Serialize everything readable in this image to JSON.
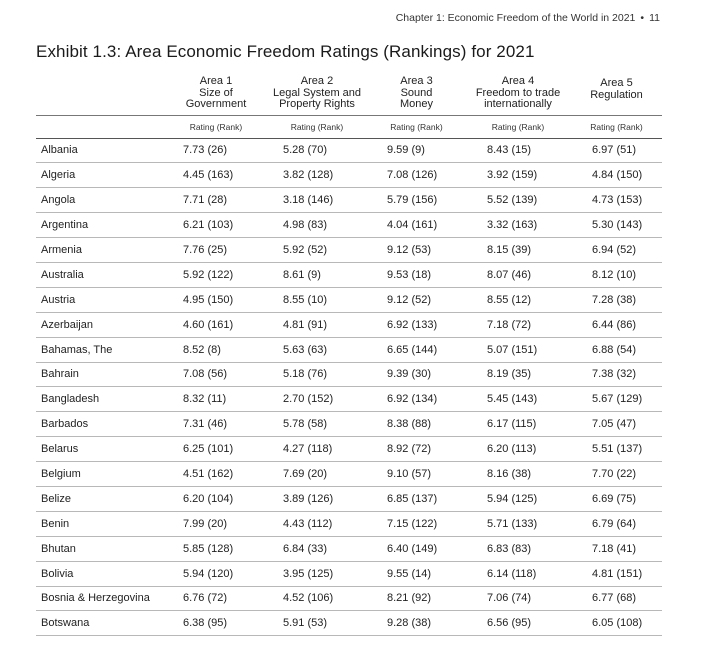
{
  "header": {
    "running_text": "Chapter 1: Economic Freedom of the World in 2021",
    "separator": "•",
    "page_number": "11"
  },
  "title": "Exhibit 1.3: Area Economic Freedom Ratings (Rankings) for 2021",
  "columns": [
    {
      "line1": "Area 1",
      "line2": "Size of",
      "line3": "Government"
    },
    {
      "line1": "Area 2",
      "line2": "Legal System and",
      "line3": "Property Rights"
    },
    {
      "line1": "Area 3",
      "line2": "Sound",
      "line3": "Money"
    },
    {
      "line1": "Area 4",
      "line2": "Freedom to trade",
      "line3": "internationally"
    },
    {
      "line1": "Area 5",
      "line2": "Regulation",
      "line3": ""
    }
  ],
  "subheader": "Rating (Rank)",
  "rows": [
    {
      "country": "Albania",
      "a1": "7.73 (26)",
      "a2": "5.28 (70)",
      "a3": "9.59 (9)",
      "a4": "8.43 (15)",
      "a5": "6.97 (51)"
    },
    {
      "country": "Algeria",
      "a1": "4.45 (163)",
      "a2": "3.82 (128)",
      "a3": "7.08 (126)",
      "a4": "3.92 (159)",
      "a5": "4.84 (150)"
    },
    {
      "country": "Angola",
      "a1": "7.71 (28)",
      "a2": "3.18 (146)",
      "a3": "5.79 (156)",
      "a4": "5.52 (139)",
      "a5": "4.73 (153)"
    },
    {
      "country": "Argentina",
      "a1": "6.21 (103)",
      "a2": "4.98 (83)",
      "a3": "4.04 (161)",
      "a4": "3.32 (163)",
      "a5": "5.30 (143)"
    },
    {
      "country": "Armenia",
      "a1": "7.76 (25)",
      "a2": "5.92 (52)",
      "a3": "9.12 (53)",
      "a4": "8.15 (39)",
      "a5": "6.94 (52)"
    },
    {
      "country": "Australia",
      "a1": "5.92 (122)",
      "a2": "8.61 (9)",
      "a3": "9.53 (18)",
      "a4": "8.07 (46)",
      "a5": "8.12 (10)"
    },
    {
      "country": "Austria",
      "a1": "4.95 (150)",
      "a2": "8.55 (10)",
      "a3": "9.12 (52)",
      "a4": "8.55 (12)",
      "a5": "7.28 (38)"
    },
    {
      "country": "Azerbaijan",
      "a1": "4.60 (161)",
      "a2": "4.81 (91)",
      "a3": "6.92 (133)",
      "a4": "7.18 (72)",
      "a5": "6.44 (86)"
    },
    {
      "country": "Bahamas, The",
      "a1": "8.52 (8)",
      "a2": "5.63 (63)",
      "a3": "6.65 (144)",
      "a4": "5.07 (151)",
      "a5": "6.88 (54)"
    },
    {
      "country": "Bahrain",
      "a1": "7.08 (56)",
      "a2": "5.18 (76)",
      "a3": "9.39 (30)",
      "a4": "8.19 (35)",
      "a5": "7.38 (32)"
    },
    {
      "country": "Bangladesh",
      "a1": "8.32 (11)",
      "a2": "2.70 (152)",
      "a3": "6.92 (134)",
      "a4": "5.45 (143)",
      "a5": "5.67 (129)"
    },
    {
      "country": "Barbados",
      "a1": "7.31 (46)",
      "a2": "5.78 (58)",
      "a3": "8.38 (88)",
      "a4": "6.17 (115)",
      "a5": "7.05 (47)"
    },
    {
      "country": "Belarus",
      "a1": "6.25 (101)",
      "a2": "4.27 (118)",
      "a3": "8.92 (72)",
      "a4": "6.20 (113)",
      "a5": "5.51 (137)"
    },
    {
      "country": "Belgium",
      "a1": "4.51 (162)",
      "a2": "7.69 (20)",
      "a3": "9.10 (57)",
      "a4": "8.16 (38)",
      "a5": "7.70 (22)"
    },
    {
      "country": "Belize",
      "a1": "6.20 (104)",
      "a2": "3.89 (126)",
      "a3": "6.85 (137)",
      "a4": "5.94 (125)",
      "a5": "6.69 (75)"
    },
    {
      "country": "Benin",
      "a1": "7.99 (20)",
      "a2": "4.43 (112)",
      "a3": "7.15 (122)",
      "a4": "5.71 (133)",
      "a5": "6.79 (64)"
    },
    {
      "country": "Bhutan",
      "a1": "5.85 (128)",
      "a2": "6.84 (33)",
      "a3": "6.40 (149)",
      "a4": "6.83 (83)",
      "a5": "7.18 (41)"
    },
    {
      "country": "Bolivia",
      "a1": "5.94 (120)",
      "a2": "3.95 (125)",
      "a3": "9.55 (14)",
      "a4": "6.14 (118)",
      "a5": "4.81 (151)"
    },
    {
      "country": "Bosnia & Herzegovina",
      "a1": "6.76 (72)",
      "a2": "4.52 (106)",
      "a3": "8.21 (92)",
      "a4": "7.06 (74)",
      "a5": "6.77 (68)"
    },
    {
      "country": "Botswana",
      "a1": "6.38 (95)",
      "a2": "5.91 (53)",
      "a3": "9.28 (38)",
      "a4": "6.56 (95)",
      "a5": "6.05 (108)"
    }
  ]
}
